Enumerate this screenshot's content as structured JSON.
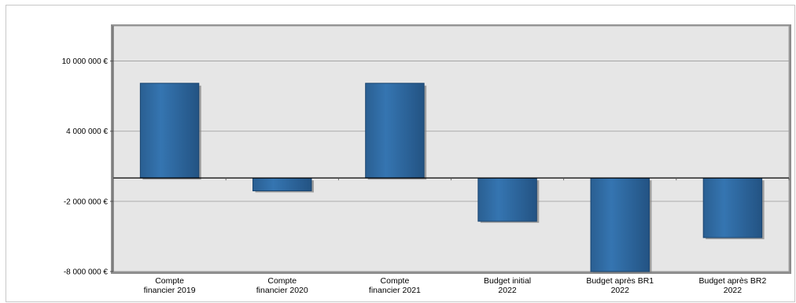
{
  "chart_data": {
    "type": "bar",
    "categories": [
      [
        "Compte",
        "financier 2019"
      ],
      [
        "Compte",
        "financier 2020"
      ],
      [
        "Compte",
        "financier 2021"
      ],
      [
        "Budget initial",
        "2022"
      ],
      [
        "Budget après BR1",
        "2022"
      ],
      [
        "Budget après BR2",
        "2022"
      ]
    ],
    "values": [
      8100000,
      -1100000,
      8100000,
      -3700000,
      -8000000,
      -5100000
    ],
    "ylim": [
      -8000000,
      13000000
    ],
    "yticks": [
      {
        "value": 10000000,
        "label": "10 000 000 €"
      },
      {
        "value": 4000000,
        "label": "4 000 000 €"
      },
      {
        "value": -2000000,
        "label": "-2 000 000 €"
      },
      {
        "value": -8000000,
        "label": "-8 000 000 €"
      }
    ],
    "grid": true,
    "colors": {
      "bar": "#2f6ca3",
      "bar_edge": "#1a4570",
      "plot_bg": "#e6e6e6",
      "zero_line": "#000000"
    }
  }
}
